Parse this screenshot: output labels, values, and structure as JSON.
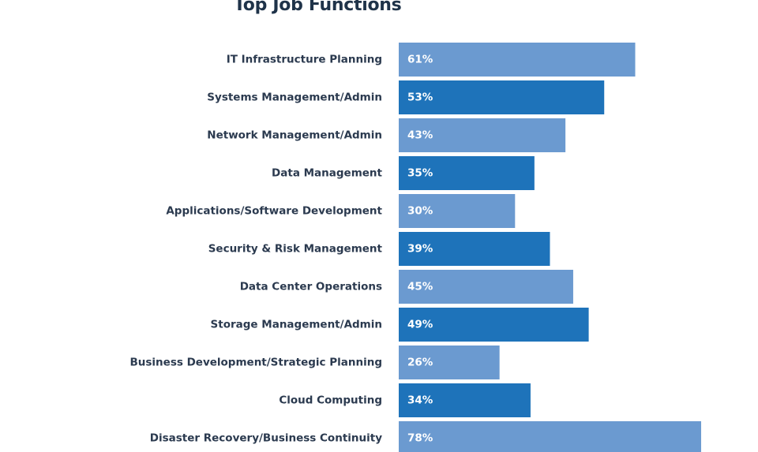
{
  "chart_data": {
    "type": "bar",
    "orientation": "horizontal",
    "title": "Top Job Functions",
    "categories": [
      "IT Infrastructure Planning",
      "Systems Management/Admin",
      "Network Management/Admin",
      "Data Management",
      "Applications/Software Development",
      "Security & Risk Management",
      "Data Center Operations",
      "Storage Management/Admin",
      "Business Development/Strategic Planning",
      "Cloud Computing",
      "Disaster Recovery/Business Continuity"
    ],
    "values": [
      61,
      53,
      43,
      35,
      30,
      39,
      45,
      49,
      26,
      34,
      78
    ],
    "value_labels": [
      "61%",
      "53%",
      "43%",
      "35%",
      "30%",
      "39%",
      "45%",
      "49%",
      "26%",
      "34%",
      "78%"
    ],
    "colors": {
      "light": "#6b9ad0",
      "dark": "#1e73ba"
    },
    "grid": false,
    "legend": "none"
  }
}
